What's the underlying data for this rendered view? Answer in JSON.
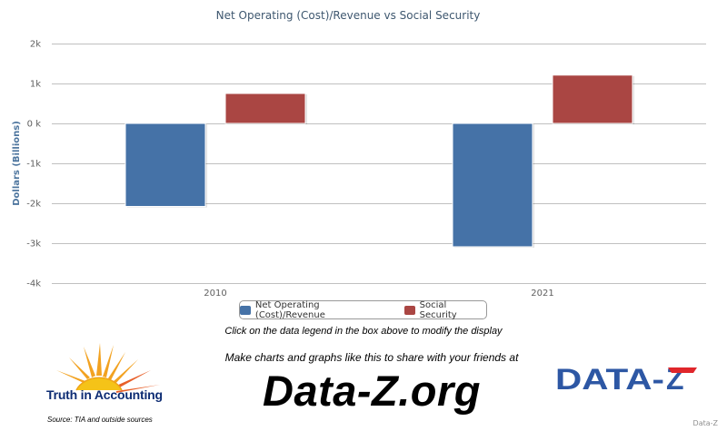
{
  "chart_data": {
    "type": "bar",
    "title": "Net Operating (Cost)/Revenue vs Social Security",
    "ylabel": "Dollars (Billions)",
    "xlabel": "",
    "categories": [
      "2010",
      "2021"
    ],
    "ylim": [
      -4000,
      2000
    ],
    "yticks": [
      2000,
      1000,
      0,
      -1000,
      -2000,
      -3000,
      -4000
    ],
    "ytick_labels": [
      "2k",
      "1k",
      "0 k",
      "-1k",
      "-2k",
      "-3k",
      "-4k"
    ],
    "grid": true,
    "legend_position": "bottom-center",
    "series": [
      {
        "name": "Net Operating (Cost)/Revenue",
        "color": "#4572a7",
        "values": [
          -2080,
          -3090
        ]
      },
      {
        "name": "Social Security",
        "color": "#aa4643",
        "values": [
          750,
          1210
        ]
      }
    ]
  },
  "hint_text": "Click on the data legend in the box above to modify the display",
  "share_text": "Make charts and graphs like this to share with your friends at",
  "site_text": "Data-Z.org",
  "tia_logo_text": "Truth in Accounting",
  "source_text": "Source: TIA and outside sources",
  "datz_logo_text": "DATA-Z",
  "credit_text": "Data-Z"
}
